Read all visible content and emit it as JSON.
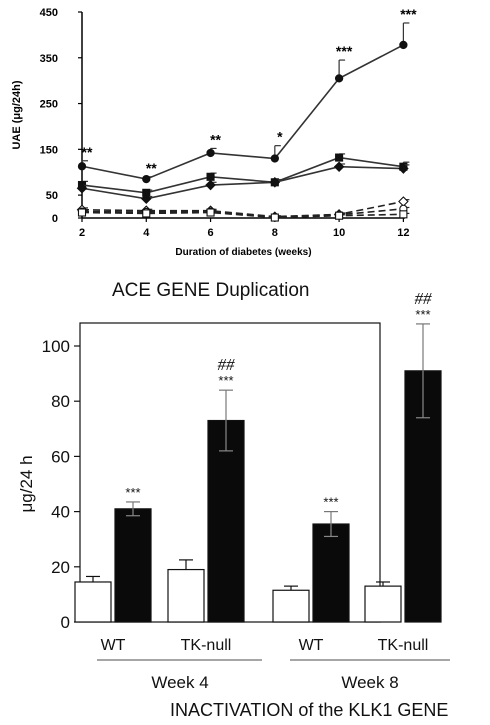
{
  "captions": {
    "top": "ACE GENE Duplication",
    "bottom": "INACTIVATION of the KLK1 GENE"
  },
  "chart_data": [
    {
      "type": "line",
      "title": "",
      "xlabel": "Duration of diabetes (weeks)",
      "ylabel": "UAE (μg/24h)",
      "x": [
        2,
        4,
        6,
        8,
        10,
        12
      ],
      "xticks": [
        "2",
        "4",
        "6",
        "8",
        "10",
        "12"
      ],
      "yticks": [
        "0",
        "50",
        "150",
        "250",
        "350",
        "450"
      ],
      "ylim": [
        0,
        450
      ],
      "grid": false,
      "series": [
        {
          "values": [
            113,
            85,
            142,
            130,
            305,
            378
          ],
          "errors": [
            12,
            5,
            10,
            28,
            40,
            48
          ],
          "marker": "filled-circle",
          "style": "solid",
          "labels": [
            "**",
            "**",
            "**",
            "*",
            "***",
            "***"
          ]
        },
        {
          "values": [
            72,
            55,
            90,
            78,
            132,
            112
          ],
          "errors": [
            8,
            6,
            8,
            6,
            8,
            10
          ],
          "marker": "filled-square",
          "style": "solid"
        },
        {
          "values": [
            65,
            42,
            72,
            78,
            112,
            108
          ],
          "errors": [
            6,
            5,
            6,
            5,
            6,
            8
          ],
          "marker": "filled-diamond",
          "style": "solid"
        },
        {
          "values": [
            18,
            16,
            16,
            3,
            8,
            36
          ],
          "errors": [
            4,
            3,
            3,
            2,
            3,
            4
          ],
          "marker": "open-diamond",
          "style": "dashed"
        },
        {
          "values": [
            14,
            13,
            14,
            2,
            7,
            20
          ],
          "errors": [
            3,
            3,
            3,
            2,
            3,
            3
          ],
          "marker": "open-circle",
          "style": "dashed"
        },
        {
          "values": [
            12,
            10,
            12,
            1,
            5,
            8
          ],
          "errors": [
            3,
            2,
            3,
            1,
            2,
            2
          ],
          "marker": "open-square",
          "style": "dashed"
        }
      ]
    },
    {
      "type": "bar",
      "title": "",
      "ylabel": "μg/24 h",
      "ylim": [
        0,
        100
      ],
      "yticks": [
        "0",
        "20",
        "40",
        "60",
        "80",
        "100"
      ],
      "grid": false,
      "group_labels": [
        "WT",
        "TK-null",
        "WT",
        "TK-null"
      ],
      "periods": [
        "Week 4",
        "Week 8"
      ],
      "series": [
        {
          "fill": "white",
          "values": [
            14.5,
            19,
            11.5,
            13
          ],
          "errors": [
            2,
            3.5,
            1.5,
            1.5
          ]
        },
        {
          "fill": "black",
          "values": [
            41,
            73,
            35.5,
            91
          ],
          "errors": [
            2.5,
            11,
            4.5,
            17
          ]
        }
      ],
      "annotations": [
        {
          "group": 0,
          "text": "***"
        },
        {
          "group": 1,
          "text": "***",
          "extra": "##"
        },
        {
          "group": 2,
          "text": "***"
        },
        {
          "group": 3,
          "text": "***",
          "extra": "##"
        }
      ]
    }
  ]
}
